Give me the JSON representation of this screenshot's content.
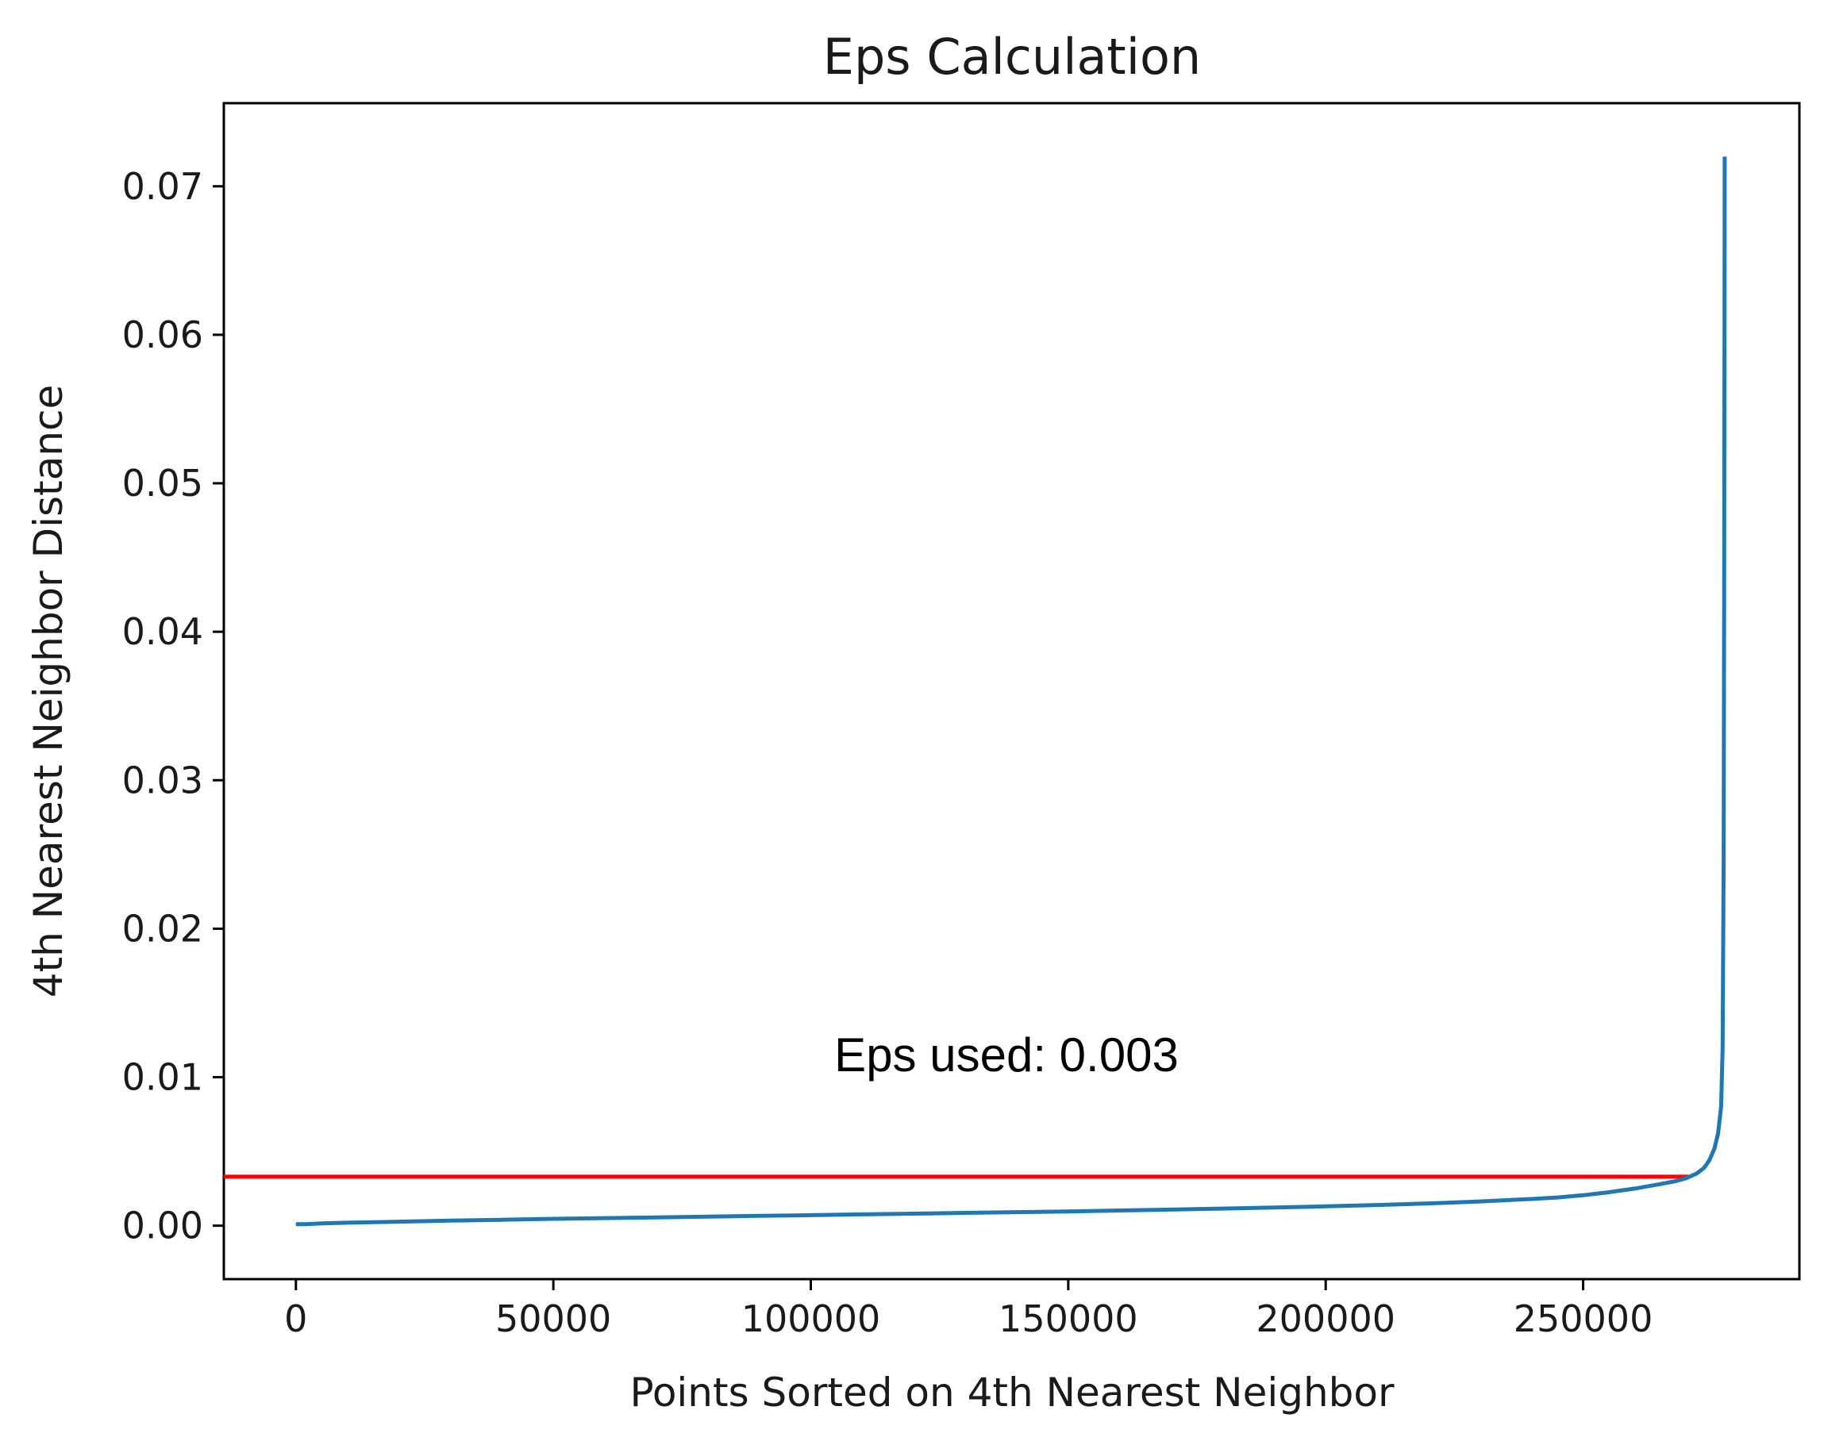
{
  "chart_data": {
    "type": "line",
    "title": "Eps Calculation",
    "xlabel": "Points Sorted on 4th Nearest Neighbor",
    "ylabel": "4th Nearest Neighbor Distance",
    "xlim": [
      -14000,
      292000
    ],
    "ylim": [
      -0.0036,
      0.0756
    ],
    "xticks": [
      0,
      50000,
      100000,
      150000,
      200000,
      250000
    ],
    "xtick_labels": [
      "0",
      "50000",
      "100000",
      "150000",
      "200000",
      "250000"
    ],
    "yticks": [
      0.0,
      0.01,
      0.02,
      0.03,
      0.04,
      0.05,
      0.06,
      0.07
    ],
    "ytick_labels": [
      "0.00",
      "0.01",
      "0.02",
      "0.03",
      "0.04",
      "0.05",
      "0.06",
      "0.07"
    ],
    "grid": false,
    "series": [
      {
        "color": "#1f77b4",
        "x": [
          0,
          2000,
          5000,
          10000,
          20000,
          30000,
          40000,
          50000,
          60000,
          70000,
          80000,
          90000,
          100000,
          110000,
          120000,
          130000,
          140000,
          150000,
          160000,
          170000,
          180000,
          190000,
          200000,
          210000,
          220000,
          230000,
          240000,
          245000,
          250000,
          255000,
          260000,
          265000,
          268000,
          270000,
          272000,
          273500,
          274500,
          275500,
          276200,
          276800,
          277100,
          277300,
          277400,
          277500
        ],
        "y": [
          0.0001,
          0.0001,
          0.00015,
          0.0002,
          0.00027,
          0.00034,
          0.0004,
          0.00046,
          0.00051,
          0.00056,
          0.00061,
          0.00066,
          0.00071,
          0.00076,
          0.00081,
          0.00086,
          0.00091,
          0.00096,
          0.00102,
          0.00108,
          0.00115,
          0.00122,
          0.0013,
          0.00139,
          0.0015,
          0.00163,
          0.0018,
          0.0019,
          0.00205,
          0.00225,
          0.0025,
          0.0028,
          0.003,
          0.0032,
          0.0035,
          0.0039,
          0.0044,
          0.0052,
          0.0062,
          0.008,
          0.012,
          0.025,
          0.045,
          0.072
        ]
      }
    ],
    "eps_line": {
      "color": "#ff0000",
      "y": 0.0033,
      "x_start": -14000,
      "x_end": 270500
    },
    "annotation": {
      "text": "Eps used: 0.003",
      "x": 138000,
      "y": 0.0104
    }
  }
}
